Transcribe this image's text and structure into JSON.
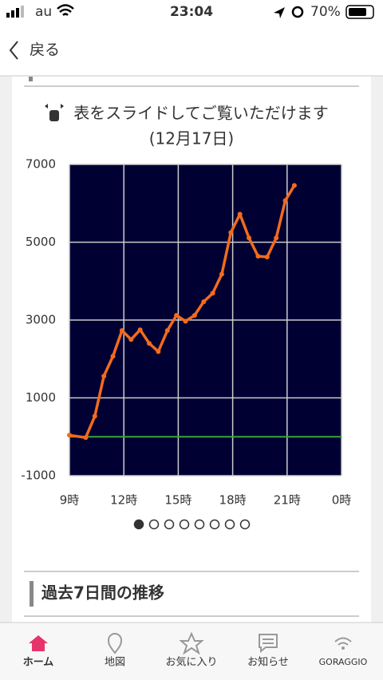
{
  "status_bar": {
    "carrier": "au",
    "time": "23:04",
    "battery": "70%"
  },
  "nav": {
    "back": "戻る"
  },
  "chart_data": {
    "type": "line",
    "title": "表をスライドしてご覧いただけます",
    "subtitle": "(12月17日)",
    "x": [
      9,
      9.9,
      10.4,
      10.9,
      11.4,
      11.9,
      12.4,
      12.9,
      13.4,
      13.9,
      14.4,
      14.9,
      15.4,
      15.9,
      16.4,
      16.9,
      17.4,
      17.9,
      18.4,
      18.9,
      19.4,
      19.9,
      20.4,
      20.9,
      21.4
    ],
    "series": [
      {
        "color": "#f26b1d",
        "values": [
          40,
          -20,
          530,
          1560,
          2070,
          2730,
          2500,
          2750,
          2400,
          2190,
          2730,
          3120,
          2970,
          3120,
          3470,
          3690,
          4180,
          5250,
          5720,
          5110,
          4640,
          4620,
          5110,
          6070,
          6460
        ]
      }
    ],
    "xlim": [
      9,
      24
    ],
    "xticks": [
      {
        "value": 9,
        "label": "9時"
      },
      {
        "value": 12,
        "label": "12時"
      },
      {
        "value": 15,
        "label": "15時"
      },
      {
        "value": 18,
        "label": "18時"
      },
      {
        "value": 21,
        "label": "21時"
      },
      {
        "value": 24,
        "label": "0時"
      }
    ],
    "ylim": [
      -1000,
      7000
    ],
    "yticks": [
      -1000,
      1000,
      3000,
      5000,
      7000
    ],
    "grid": true,
    "background": "#000033",
    "hline": 0,
    "hline_color": "#3aa53a"
  },
  "pagination": {
    "pages": 8,
    "current": 0
  },
  "section": {
    "title": "過去7日間の推移"
  },
  "tab_bar": {
    "items": [
      "ホーム",
      "地図",
      "お気に入り",
      "お知らせ",
      "GORAGGIO"
    ],
    "active": 0
  }
}
